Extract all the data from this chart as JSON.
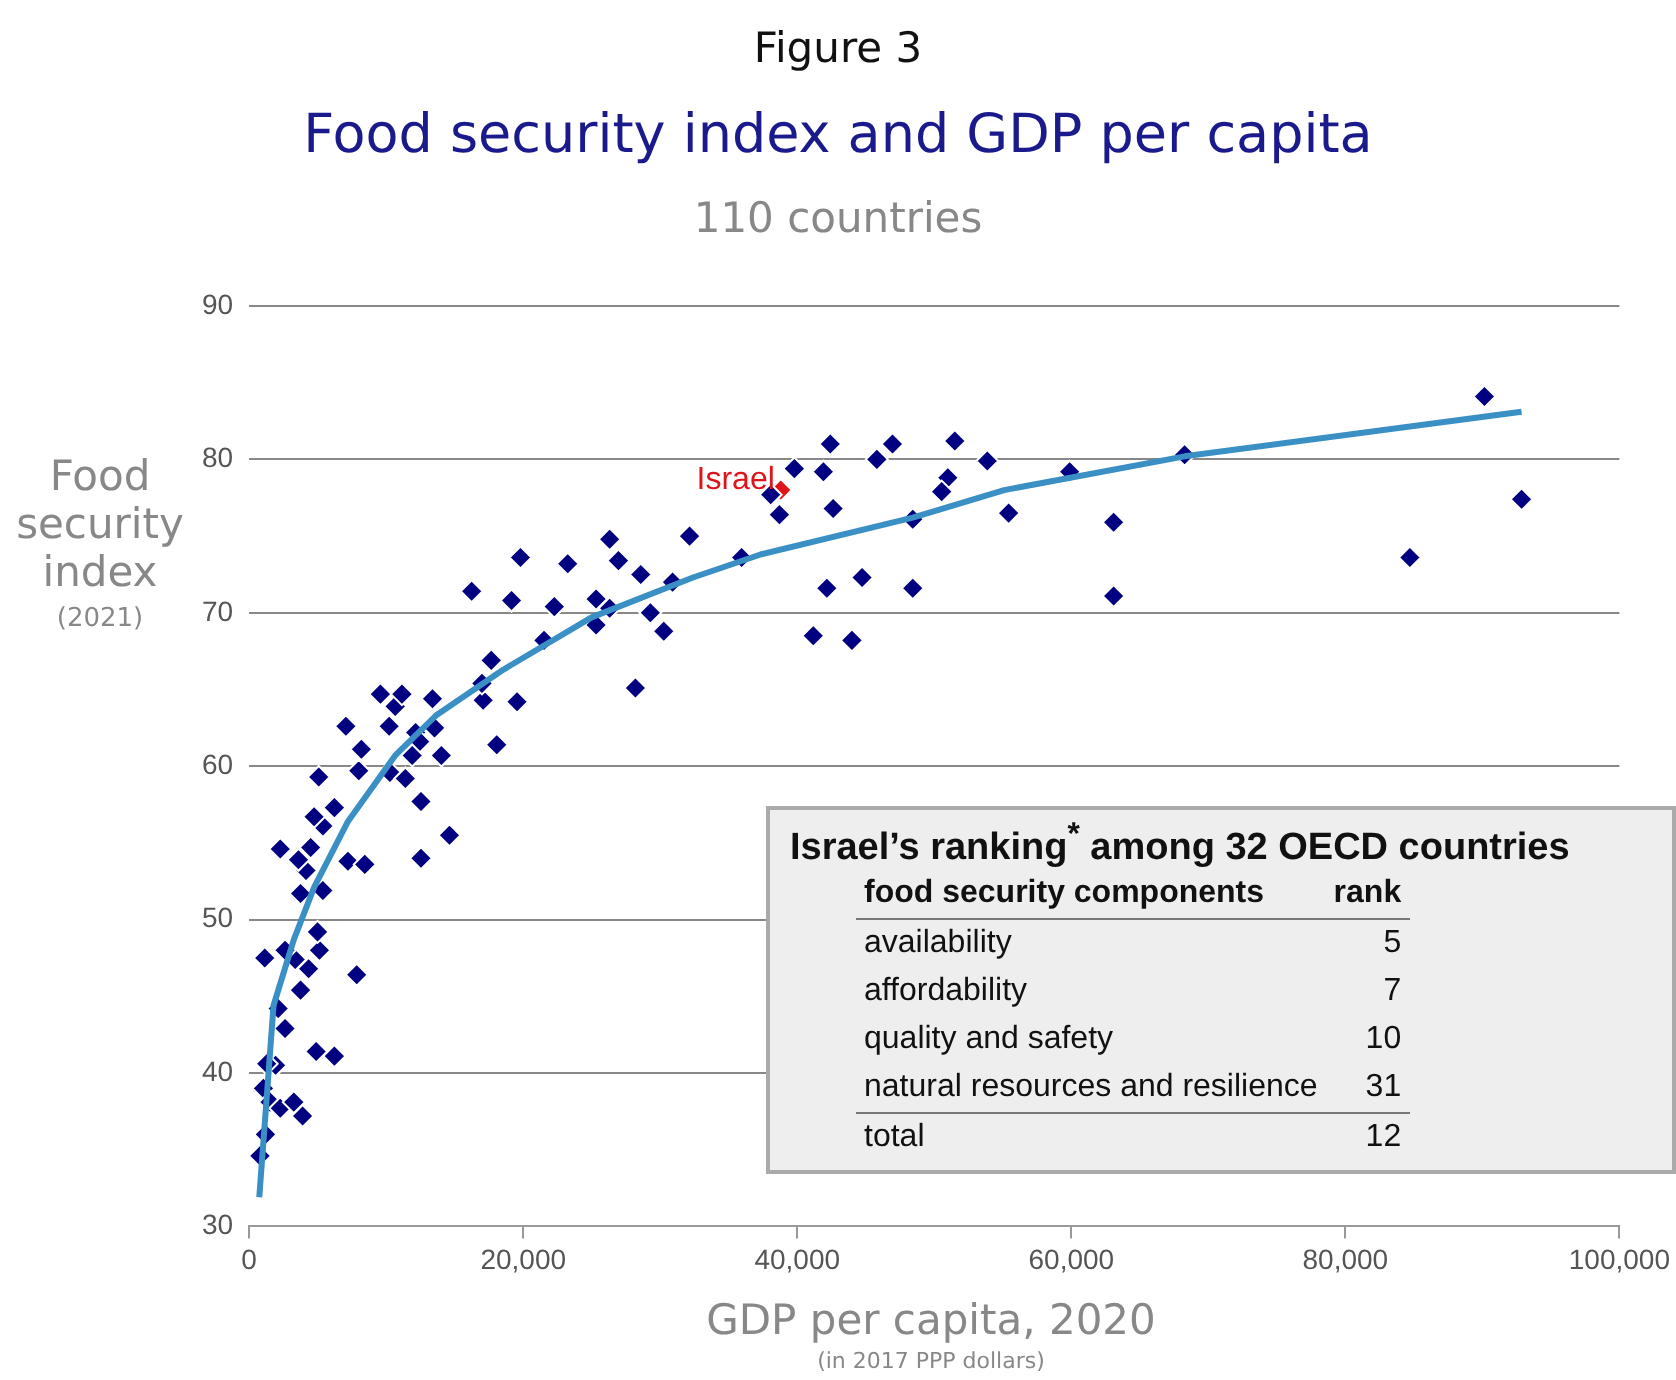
{
  "chart_data": {
    "type": "scatter",
    "title": "Food security index and GDP per capita",
    "subtitle": "110 countries",
    "xlabel": "GDP per capita, 2020",
    "ylabel": "Food security index",
    "annotations": [
      "Figure 3",
      "(2021)",
      "(in 2017 PPP dollars)",
      "Israel’s ranking$^{*}$ among 32 OECD countries",
      "food security components",
      "rank",
      "availability",
      "5",
      "affordability",
      "7",
      "quality and safety",
      "10",
      "natural resources and resilience",
      "31",
      "total",
      "12"
    ],
    "xlim": [
      0,
      100000
    ],
    "xticks": [
      0,
      {
        "value": 20000,
        "label": "20,000"
      },
      {
        "value": 40000,
        "label": "40,000"
      },
      {
        "value": 60000,
        "label": "60,000"
      },
      {
        "value": 80000,
        "label": "80,000"
      },
      {
        "value": 100000,
        "label": "100,000"
      }
    ],
    "ylim": [
      30,
      90
    ],
    "yticks": [
      30,
      40,
      50,
      60,
      70,
      80,
      90
    ],
    "grid": "y",
    "legend": false,
    "marker": "diamond",
    "series": [
      {
        "type": "scatter",
        "color": "#000080",
        "x": [
          790,
          1190,
          1040,
          1530,
          2270,
          3260,
          3900,
          1930,
          1280,
          4890,
          6220,
          2620,
          2120,
          3750,
          7850,
          1140,
          3360,
          2620,
          4340,
          5130,
          4990,
          3750,
          5380,
          4150,
          4490,
          3600,
          2270,
          7210,
          8440,
          12540,
          14620,
          12540,
          5380,
          4740,
          6220,
          5080,
          8000,
          10270,
          11400,
          8190,
          7060,
          10220,
          10660,
          9580,
          11150,
          13380,
          13530,
          12150,
          12440,
          11900,
          14030,
          19550,
          17080,
          16990,
          17670,
          18070,
          21520,
          16240,
          19800,
          19150,
          23250,
          22270,
          26310,
          26950,
          28580,
          25320,
          26310,
          25320,
          29280,
          30260,
          28190,
          30900,
          32140,
          35940,
          38060,
          38700,
          39790,
          41910,
          42410,
          45810,
          46950,
          51500,
          53870,
          50990,
          50540,
          59880,
          42620,
          48430,
          55430,
          63090,
          44730,
          42160,
          48430,
          41170,
          43990,
          63090,
          68270,
          90150,
          92860,
          84710
        ],
        "values": [
          34.6,
          36.0,
          39.0,
          38.1,
          37.7,
          38.1,
          37.2,
          40.5,
          40.6,
          41.4,
          41.1,
          42.9,
          44.2,
          45.4,
          46.4,
          47.5,
          47.4,
          48.0,
          46.8,
          48.0,
          49.2,
          51.7,
          51.9,
          53.2,
          54.7,
          53.9,
          54.6,
          53.8,
          53.6,
          54.0,
          55.5,
          57.7,
          56.1,
          56.7,
          57.3,
          59.3,
          59.7,
          59.6,
          59.2,
          61.1,
          62.6,
          62.6,
          63.9,
          64.7,
          64.7,
          64.4,
          62.5,
          62.2,
          61.6,
          60.7,
          60.7,
          64.2,
          64.3,
          65.4,
          66.9,
          61.4,
          68.2,
          71.4,
          73.6,
          70.8,
          73.2,
          70.4,
          74.8,
          73.4,
          72.5,
          70.9,
          70.3,
          69.2,
          70.0,
          68.8,
          65.1,
          72.0,
          75.0,
          73.6,
          77.7,
          76.4,
          79.4,
          79.2,
          81.0,
          80.0,
          81.0,
          81.2,
          79.9,
          78.8,
          77.9,
          79.2,
          76.8,
          76.1,
          76.5,
          75.9,
          72.3,
          71.6,
          71.6,
          68.5,
          68.2,
          71.1,
          80.3,
          84.1,
          77.4,
          73.6
        ]
      },
      {
        "type": "scatter",
        "name": "Israel",
        "color": "#e0151b",
        "x": [
          38800
        ],
        "values": [
          78.0
        ]
      },
      {
        "type": "line",
        "color": "#3a8fc4",
        "marker": "none",
        "x": [
          740,
          1780,
          3260,
          4740,
          7210,
          10660,
          13630,
          18560,
          24990,
          32390,
          37320,
          48430,
          55100,
          68270,
          92860
        ],
        "values": [
          31.9,
          44.4,
          48.7,
          52.1,
          56.4,
          60.7,
          63.3,
          66.3,
          69.7,
          72.3,
          73.8,
          76.2,
          78.0,
          80.2,
          83.1
        ]
      }
    ]
  }
}
